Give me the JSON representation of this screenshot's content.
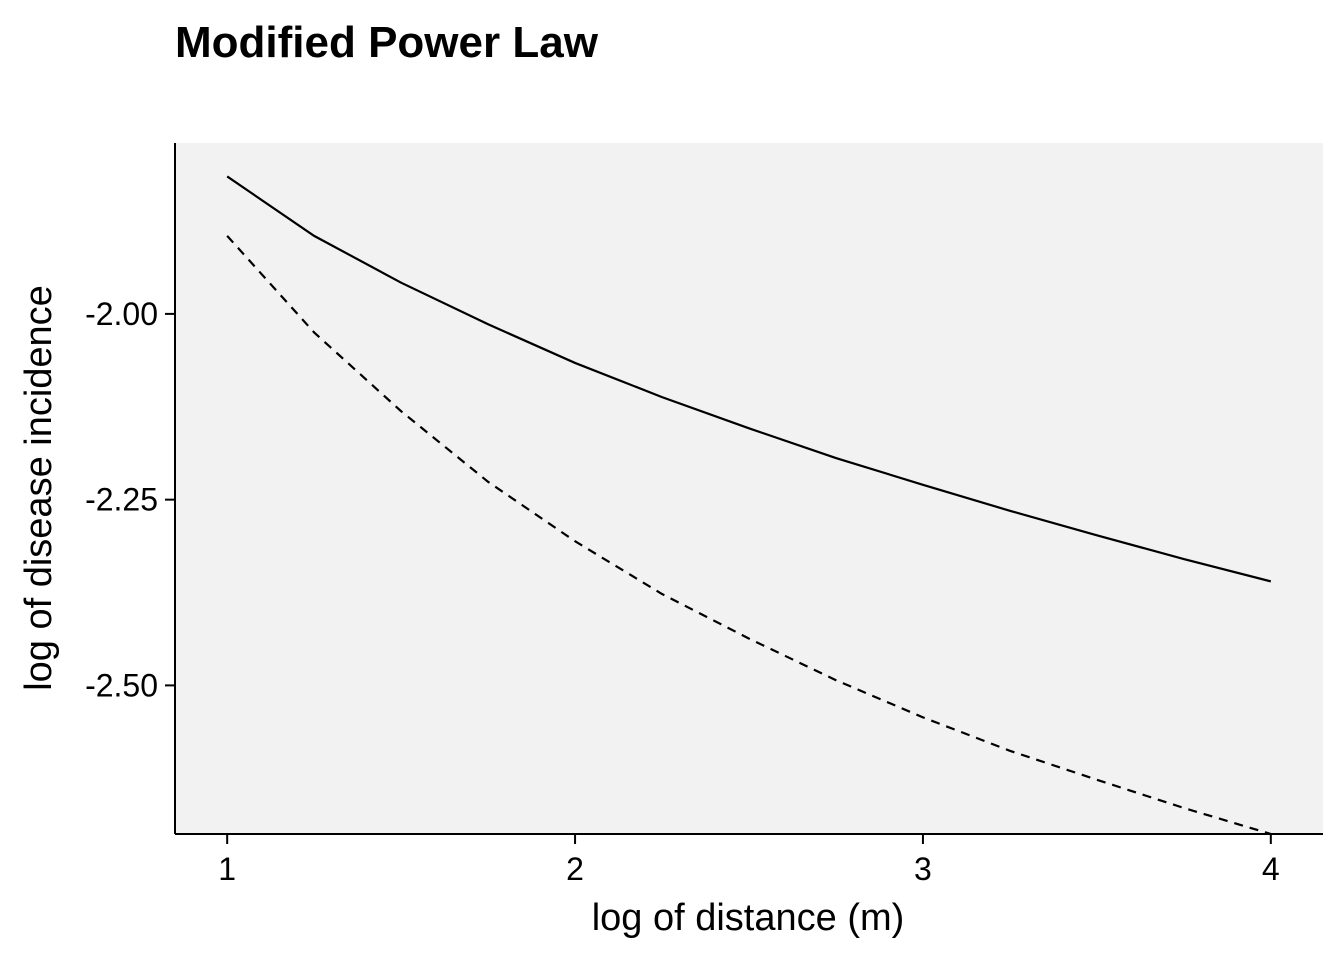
{
  "chart_data": {
    "type": "line",
    "title": "Modified Power Law",
    "xlabel": "log of distance (m)",
    "ylabel": "log of disease incidence",
    "xlim": [
      0.85,
      4.15
    ],
    "ylim": [
      -2.7,
      -1.77
    ],
    "x_ticks": [
      1,
      2,
      3,
      4
    ],
    "x_tick_labels": [
      "1",
      "2",
      "3",
      "4"
    ],
    "y_ticks": [
      -2.0,
      -2.25,
      -2.5
    ],
    "y_tick_labels": [
      "-2.00",
      "-2.25",
      "-2.50"
    ],
    "grid": false,
    "legend": "none",
    "panel_background": "#f2f2f2",
    "line_color": "#000000",
    "series": [
      {
        "style": "solid",
        "x": [
          1.0,
          1.25,
          1.5,
          1.75,
          2.0,
          2.25,
          2.5,
          2.75,
          3.0,
          3.25,
          3.5,
          3.75,
          4.0
        ],
        "values": [
          -1.815,
          -1.895,
          -1.958,
          -2.014,
          -2.066,
          -2.112,
          -2.154,
          -2.194,
          -2.23,
          -2.265,
          -2.298,
          -2.33,
          -2.36
        ]
      },
      {
        "style": "dashed",
        "x": [
          1.0,
          1.25,
          1.5,
          1.75,
          2.0,
          2.25,
          2.5,
          2.75,
          3.0,
          3.25,
          3.5,
          3.75,
          4.0
        ],
        "values": [
          -1.895,
          -2.025,
          -2.131,
          -2.226,
          -2.306,
          -2.377,
          -2.437,
          -2.493,
          -2.543,
          -2.588,
          -2.627,
          -2.665,
          -2.7
        ]
      }
    ]
  }
}
